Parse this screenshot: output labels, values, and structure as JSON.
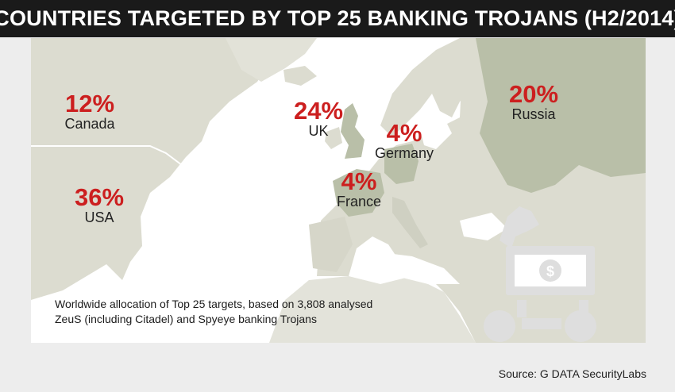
{
  "title": "COUNTRIES TARGETED BY TOP 25 BANKING TROJANS (H2/2014)",
  "countries": [
    {
      "id": "canada",
      "percent": "12%",
      "name": "Canada"
    },
    {
      "id": "usa",
      "percent": "36%",
      "name": "USA"
    },
    {
      "id": "uk",
      "percent": "24%",
      "name": "UK"
    },
    {
      "id": "germany",
      "percent": "4%",
      "name": "Germany"
    },
    {
      "id": "france",
      "percent": "4%",
      "name": "France"
    },
    {
      "id": "russia",
      "percent": "20%",
      "name": "Russia"
    }
  ],
  "caption": {
    "line1": "Worldwide allocation of Top 25 targets, based on 3,808 analysed",
    "line2": "ZeuS (including Citadel) and Spyeye banking Trojans"
  },
  "source": "Source: G DATA SecurityLabs",
  "colors": {
    "title_bg": "#1a1a1a",
    "ocean": "#ffffff",
    "land": "#dcdcd0",
    "highlight_land": "#b9bfa8",
    "percent": "#cc1f1f",
    "trojan_icon": "#dedede"
  },
  "icons": [
    "trojan-horse-icon",
    "dollar-icon"
  ]
}
